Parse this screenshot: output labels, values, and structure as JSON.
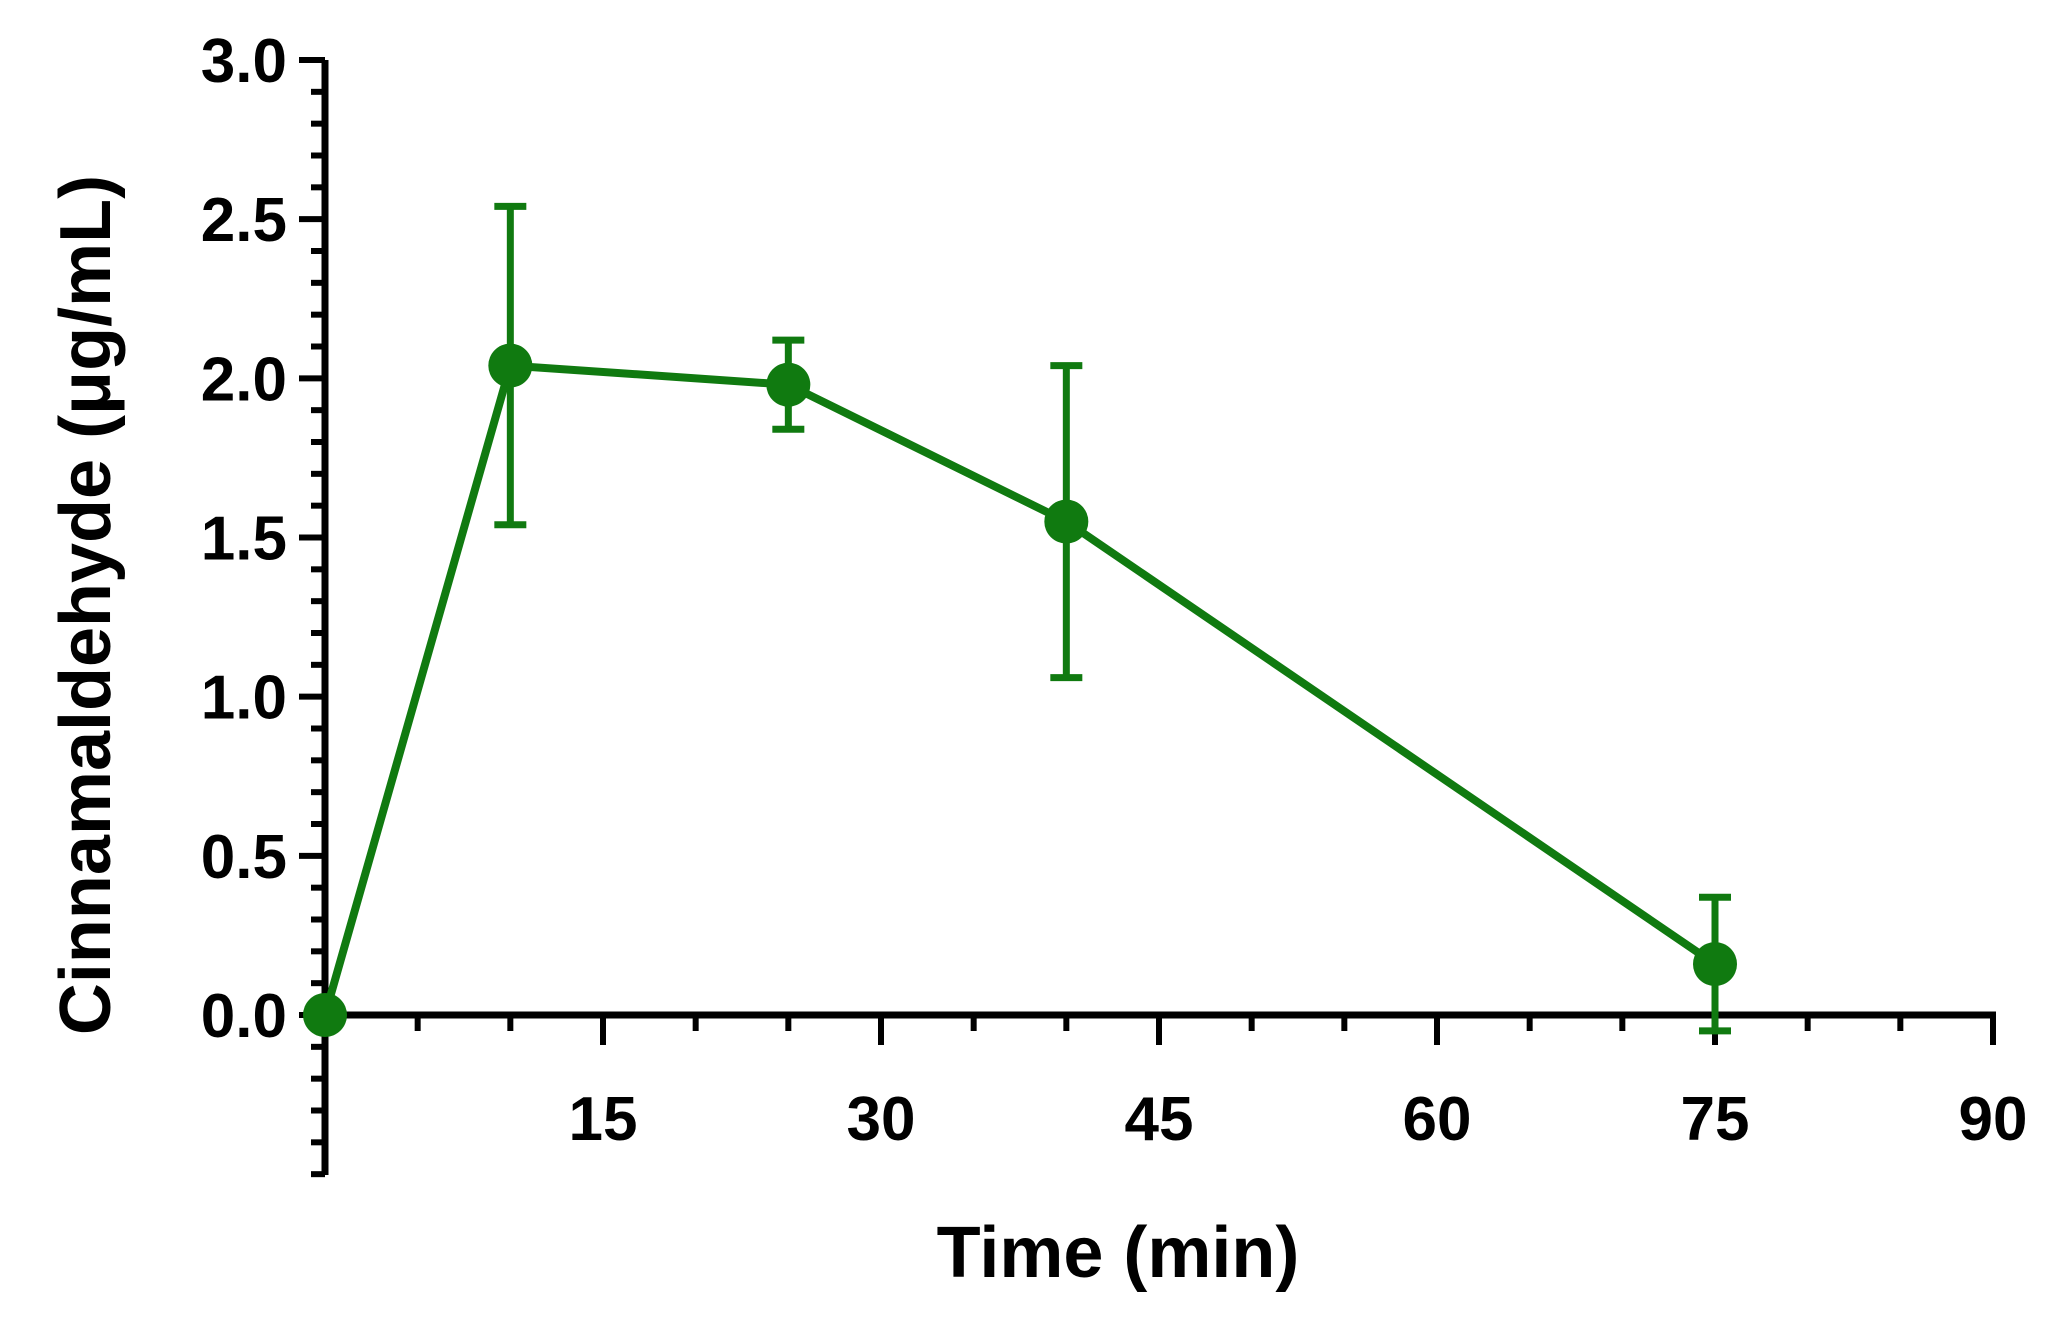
{
  "chart_data": {
    "type": "line",
    "title": "",
    "xlabel": "Time (min)",
    "ylabel": "Cinnamaldehyde (μg/mL)",
    "xlim": [
      0,
      90
    ],
    "ylim": [
      -0.5,
      3.0
    ],
    "x_ticks": [
      15,
      30,
      45,
      60,
      75,
      90
    ],
    "x_tick_labels": [
      "15",
      "30",
      "45",
      "60",
      "75",
      "90"
    ],
    "y_ticks": [
      0.0,
      0.5,
      1.0,
      1.5,
      2.0,
      2.5,
      3.0
    ],
    "y_tick_labels": [
      "0.0",
      "0.5",
      "1.0",
      "1.5",
      "2.0",
      "2.5",
      "3.0"
    ],
    "grid": false,
    "legend": "none",
    "series": [
      {
        "color": "#107a10",
        "x": [
          0,
          10,
          25,
          40,
          75
        ],
        "y": [
          0.0,
          2.04,
          1.98,
          1.55,
          0.16
        ],
        "error": [
          0.0,
          0.5,
          0.14,
          0.49,
          0.21
        ]
      }
    ]
  }
}
